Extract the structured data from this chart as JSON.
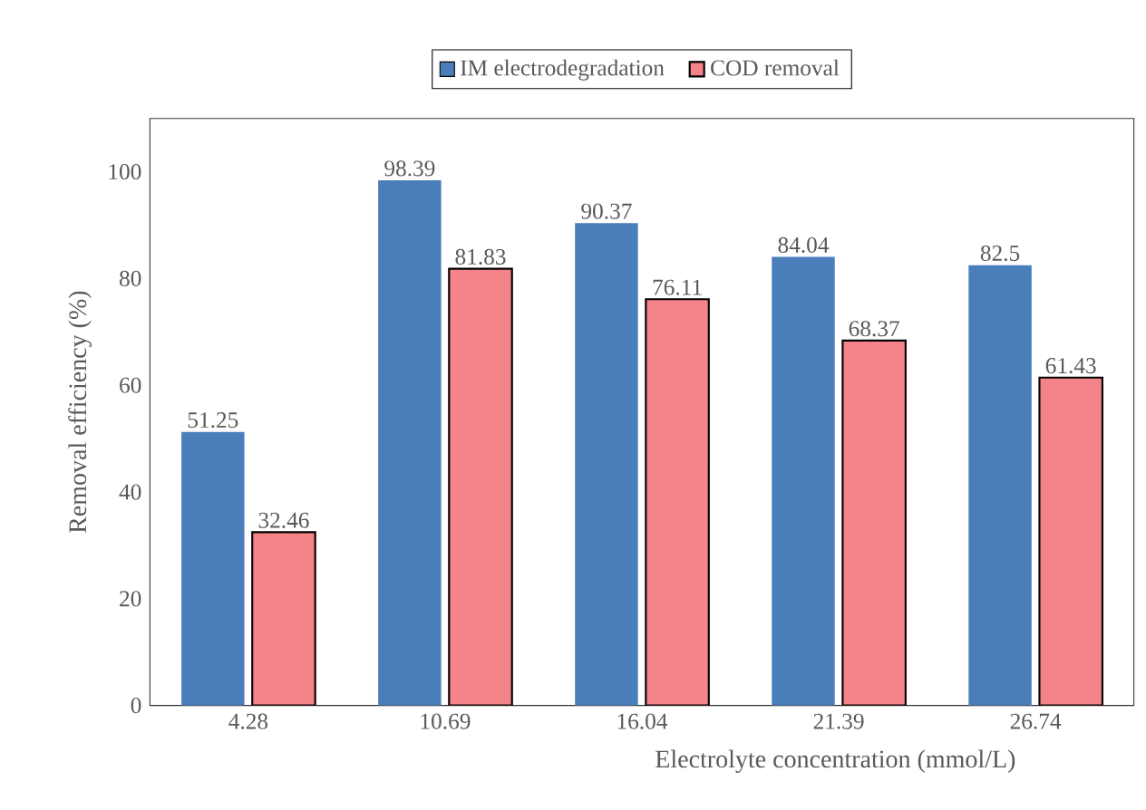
{
  "chart_data": {
    "type": "bar",
    "xlabel": "Electrolyte concentration (mmol/L)",
    "ylabel": "Removal efficiency (%)",
    "categories": [
      "4.28",
      "10.69",
      "16.04",
      "21.39",
      "26.74"
    ],
    "series": [
      {
        "name": "IM electrodegradation",
        "color": "#4a7ebb",
        "values": [
          51.25,
          98.39,
          90.37,
          84.04,
          82.5
        ]
      },
      {
        "name": "COD removal",
        "color": "#f4838a",
        "values": [
          32.46,
          81.83,
          76.11,
          68.37,
          61.43
        ]
      }
    ],
    "ylim": [
      0,
      110
    ],
    "yticks": [
      0,
      20,
      40,
      60,
      80,
      100
    ],
    "grid": false,
    "legend": "top",
    "data_labels": true
  }
}
